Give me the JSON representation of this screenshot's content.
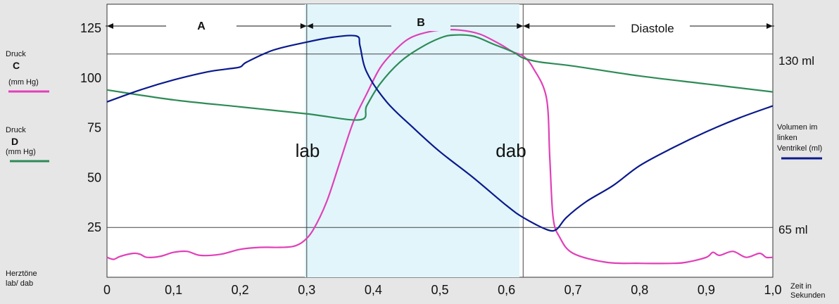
{
  "chart_data": {
    "type": "line",
    "xlabel": "Zeit in Sekunden",
    "x_ticks": [
      "0",
      "0,1",
      "0,2",
      "0,3",
      "0,4",
      "0,5",
      "0,6",
      "0,7",
      "0,8",
      "0,9",
      "1,0"
    ],
    "xlim": [
      0,
      1.0
    ],
    "y_ticks": [
      "25",
      "50",
      "75",
      "100",
      "125"
    ],
    "ylim": [
      0,
      137
    ],
    "grid": false,
    "reference_lines": {
      "y": [
        25,
        112
      ],
      "x": [
        0.3,
        0.625
      ],
      "volume_labels": [
        "130 ml",
        "65 ml"
      ]
    },
    "phases": [
      {
        "label": "A",
        "x_range": [
          0,
          0.3
        ]
      },
      {
        "label": "B",
        "x_range": [
          0.3,
          0.625
        ],
        "fill": "#e1f5fb"
      },
      {
        "label": "Diastole",
        "x_range": [
          0.625,
          1.0
        ]
      }
    ],
    "annotations": [
      {
        "text": "lab",
        "x": 0.3
      },
      {
        "text": "dab",
        "x": 0.625
      }
    ],
    "left_legend": {
      "c": {
        "l1": "Druck",
        "l2": "C",
        "l3": "(mm Hg)",
        "color": "#e040b8"
      },
      "d": {
        "l1": "Druck",
        "l2": "D",
        "l3": "(mm Hg)",
        "color": "#2e8b57"
      },
      "sounds": {
        "l1": "Herztöne",
        "l2": "lab/ dab"
      }
    },
    "right_legend": {
      "l1": "Volumen im",
      "l2": "linken",
      "l3": "Ventrikel (ml)",
      "color": "#0a1a8c"
    },
    "series": [
      {
        "key": "C",
        "color": "#e040b8",
        "points": [
          [
            0,
            10
          ],
          [
            0.01,
            9
          ],
          [
            0.02,
            10.5
          ],
          [
            0.04,
            12
          ],
          [
            0.05,
            11.5
          ],
          [
            0.06,
            10
          ],
          [
            0.08,
            10.5
          ],
          [
            0.1,
            12.5
          ],
          [
            0.12,
            13
          ],
          [
            0.14,
            11
          ],
          [
            0.17,
            11.5
          ],
          [
            0.2,
            14
          ],
          [
            0.23,
            15
          ],
          [
            0.26,
            15
          ],
          [
            0.28,
            15.5
          ],
          [
            0.295,
            18
          ],
          [
            0.31,
            24
          ],
          [
            0.33,
            38
          ],
          [
            0.35,
            58
          ],
          [
            0.37,
            78
          ],
          [
            0.39,
            92
          ],
          [
            0.41,
            105
          ],
          [
            0.43,
            113
          ],
          [
            0.45,
            119
          ],
          [
            0.47,
            122
          ],
          [
            0.5,
            124
          ],
          [
            0.53,
            124
          ],
          [
            0.56,
            122
          ],
          [
            0.59,
            117
          ],
          [
            0.61,
            113
          ],
          [
            0.625,
            111
          ],
          [
            0.64,
            105
          ],
          [
            0.66,
            90
          ],
          [
            0.665,
            60
          ],
          [
            0.67,
            30
          ],
          [
            0.68,
            20
          ],
          [
            0.7,
            12
          ],
          [
            0.75,
            7.5
          ],
          [
            0.8,
            7
          ],
          [
            0.85,
            7
          ],
          [
            0.87,
            7.5
          ],
          [
            0.9,
            10
          ],
          [
            0.91,
            12.5
          ],
          [
            0.92,
            11
          ],
          [
            0.94,
            13
          ],
          [
            0.96,
            10
          ],
          [
            0.98,
            12
          ],
          [
            0.99,
            10
          ],
          [
            1.0,
            10
          ]
        ]
      },
      {
        "key": "D",
        "color": "#2e8b57",
        "points": [
          [
            0,
            94
          ],
          [
            0.1,
            89
          ],
          [
            0.2,
            85.5
          ],
          [
            0.3,
            82
          ],
          [
            0.38,
            79
          ],
          [
            0.39,
            86
          ],
          [
            0.41,
            97
          ],
          [
            0.44,
            108
          ],
          [
            0.47,
            115
          ],
          [
            0.5,
            120
          ],
          [
            0.52,
            121.5
          ],
          [
            0.55,
            121
          ],
          [
            0.58,
            117
          ],
          [
            0.61,
            113
          ],
          [
            0.625,
            110
          ],
          [
            0.65,
            108
          ],
          [
            0.7,
            106
          ],
          [
            0.8,
            101
          ],
          [
            0.9,
            97
          ],
          [
            1.0,
            93
          ]
        ]
      },
      {
        "key": "V",
        "color": "#0a1a8c",
        "points": [
          [
            0,
            88
          ],
          [
            0.05,
            94
          ],
          [
            0.1,
            99
          ],
          [
            0.15,
            103
          ],
          [
            0.18,
            104.5
          ],
          [
            0.2,
            105.5
          ],
          [
            0.21,
            108
          ],
          [
            0.25,
            114
          ],
          [
            0.3,
            118
          ],
          [
            0.34,
            120.5
          ],
          [
            0.375,
            121
          ],
          [
            0.38,
            116
          ],
          [
            0.39,
            103
          ],
          [
            0.42,
            88
          ],
          [
            0.46,
            75
          ],
          [
            0.5,
            63
          ],
          [
            0.55,
            50
          ],
          [
            0.6,
            36
          ],
          [
            0.625,
            30
          ],
          [
            0.66,
            24
          ],
          [
            0.675,
            24
          ],
          [
            0.69,
            30
          ],
          [
            0.72,
            38
          ],
          [
            0.76,
            46
          ],
          [
            0.8,
            56
          ],
          [
            0.85,
            65
          ],
          [
            0.9,
            73
          ],
          [
            0.95,
            80
          ],
          [
            1.0,
            86
          ]
        ]
      }
    ]
  }
}
